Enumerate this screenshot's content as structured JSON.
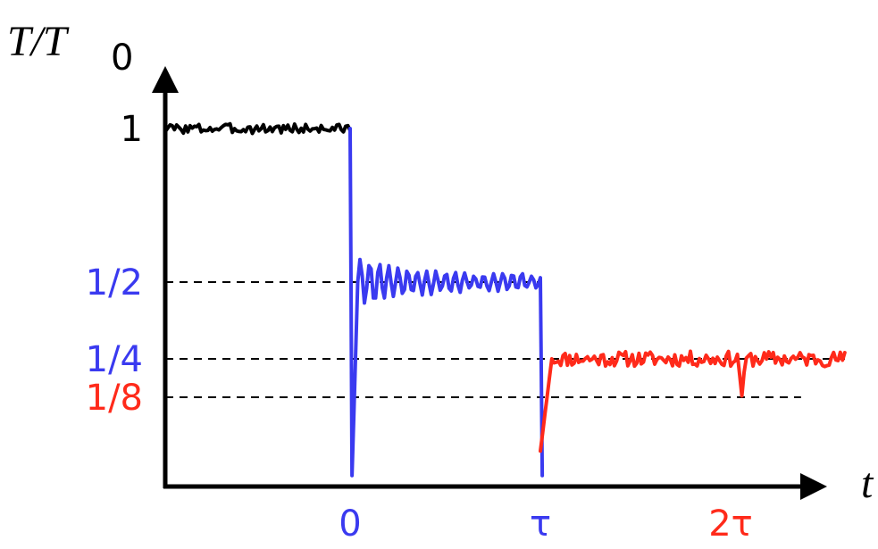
{
  "chart_data": {
    "type": "line",
    "ylabel": "T/T",
    "ylabel_sub": "0",
    "xlabel": "t",
    "x_ticks": [
      {
        "label": "0",
        "value": 0,
        "color": "#3a3af0"
      },
      {
        "label": "τ",
        "value": 1,
        "color": "#3a3af0"
      },
      {
        "label": "2τ",
        "value": 2,
        "color": "#ff2a1a"
      }
    ],
    "y_ticks": [
      {
        "label": "1",
        "value": 1,
        "color": "#000000"
      },
      {
        "label": "1/2",
        "value": 0.5,
        "color": "#3a3af0"
      },
      {
        "label": "1/4",
        "value": 0.25,
        "color": "#3a3af0"
      },
      {
        "label": "1/8",
        "value": 0.125,
        "color": "#ff2a1a"
      }
    ],
    "reference_lines": [
      {
        "y": 0.5,
        "x_from": -1.0,
        "x_to": 1.0
      },
      {
        "y": 0.25,
        "x_from": -1.0,
        "x_to": 2.62
      },
      {
        "y": 0.125,
        "x_from": -1.0,
        "x_to": 2.37
      }
    ],
    "xlim": [
      -1.05,
      2.62
    ],
    "ylim": [
      -0.13,
      1.15
    ],
    "series": [
      {
        "color": "#000000",
        "points": [
          [
            -0.97,
            1.0
          ],
          [
            0.0,
            1.0
          ]
        ],
        "noise": 0.016,
        "seed": 3
      },
      {
        "color": "#3a3af0",
        "points": [
          [
            0.0,
            1.0
          ],
          [
            0.01,
            -0.13
          ],
          [
            0.04,
            0.5
          ],
          [
            1.0,
            0.5
          ],
          [
            1.01,
            -0.13
          ]
        ],
        "ringing": {
          "x_start": 0.04,
          "x_end": 1.0,
          "level": 0.5,
          "amp": 0.06,
          "decay": 1.2,
          "floor": 0.02,
          "period": 0.05
        },
        "seed": 7
      },
      {
        "color": "#ff2a1a",
        "points": [
          [
            1.0,
            -0.05
          ],
          [
            1.06,
            0.25
          ],
          [
            2.6,
            0.25
          ]
        ],
        "noise": 0.025,
        "dip": {
          "x": 2.06,
          "y": 0.125,
          "width": 0.04
        },
        "seed": 11
      }
    ]
  }
}
